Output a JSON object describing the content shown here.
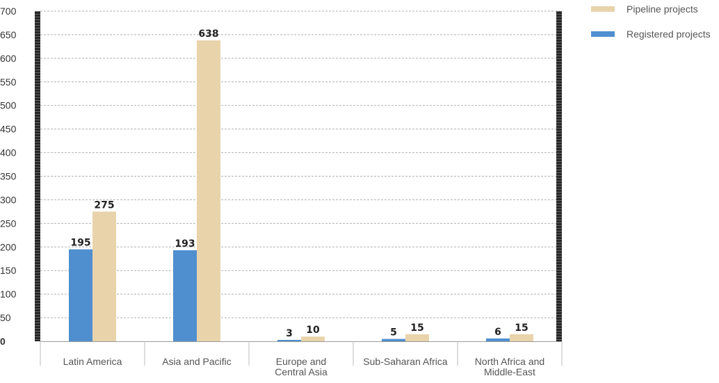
{
  "chart_data": {
    "type": "bar",
    "categories": [
      [
        "Latin America"
      ],
      [
        "Asia and Pacific"
      ],
      [
        "Europe and",
        "Central Asia"
      ],
      [
        "Sub-Saharan Africa"
      ],
      [
        "North Africa and",
        "Middle-East"
      ]
    ],
    "series": [
      {
        "name": "Registered projects",
        "values": [
          195,
          193,
          3,
          5,
          6
        ],
        "color": "#4f8fcf"
      },
      {
        "name": "Pipeline projects",
        "values": [
          275,
          638,
          10,
          15,
          15
        ],
        "color": "#e8d3ab"
      }
    ],
    "ylim": [
      0,
      700
    ],
    "yticks": [
      0,
      50,
      100,
      150,
      200,
      250,
      300,
      350,
      400,
      450,
      500,
      550,
      600,
      650,
      700
    ],
    "grid": true,
    "legend_position": "top-right",
    "title": "",
    "xlabel": "",
    "ylabel": ""
  },
  "legend": {
    "items": [
      {
        "label": "Pipeline projects",
        "color": "#e8d3ab"
      },
      {
        "label": "Registered projects",
        "color": "#4f8fcf"
      }
    ]
  }
}
